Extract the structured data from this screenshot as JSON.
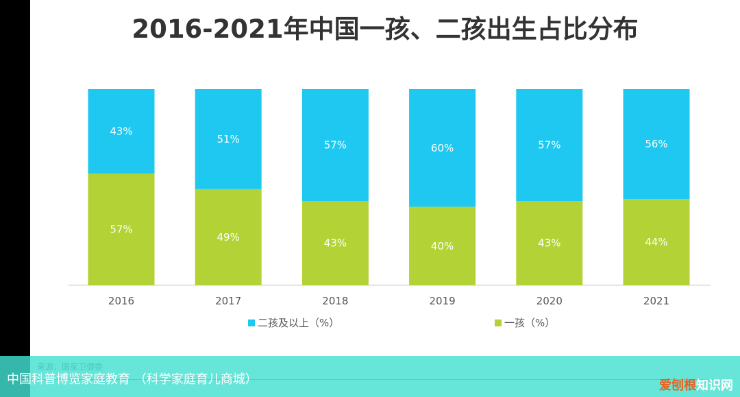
{
  "chart_data": {
    "type": "bar",
    "stacked": true,
    "title": "2016-2021年中国一孩、二孩出生占比分布",
    "categories": [
      "2016",
      "2017",
      "2018",
      "2019",
      "2020",
      "2021"
    ],
    "series": [
      {
        "name": "一孩（%）",
        "values": [
          57,
          49,
          43,
          40,
          43,
          44
        ],
        "labels": [
          "57%",
          "49%",
          "43%",
          "40%",
          "43%",
          "44%"
        ],
        "color": "#b2d235"
      },
      {
        "name": "二孩及以上（%）",
        "values": [
          43,
          51,
          57,
          60,
          57,
          56
        ],
        "labels": [
          "43%",
          "51%",
          "57%",
          "60%",
          "57%",
          "56%"
        ],
        "color": "#1ec8f0"
      }
    ],
    "ylim": [
      0,
      100
    ],
    "grid": false,
    "legend": "bottom"
  },
  "footer": {
    "source": "来源：国家卫健委",
    "caption": "中国科普博览家庭教育 （科学家庭育儿商城）",
    "watermark_a": "爱刨根",
    "watermark_b": "知识网"
  }
}
